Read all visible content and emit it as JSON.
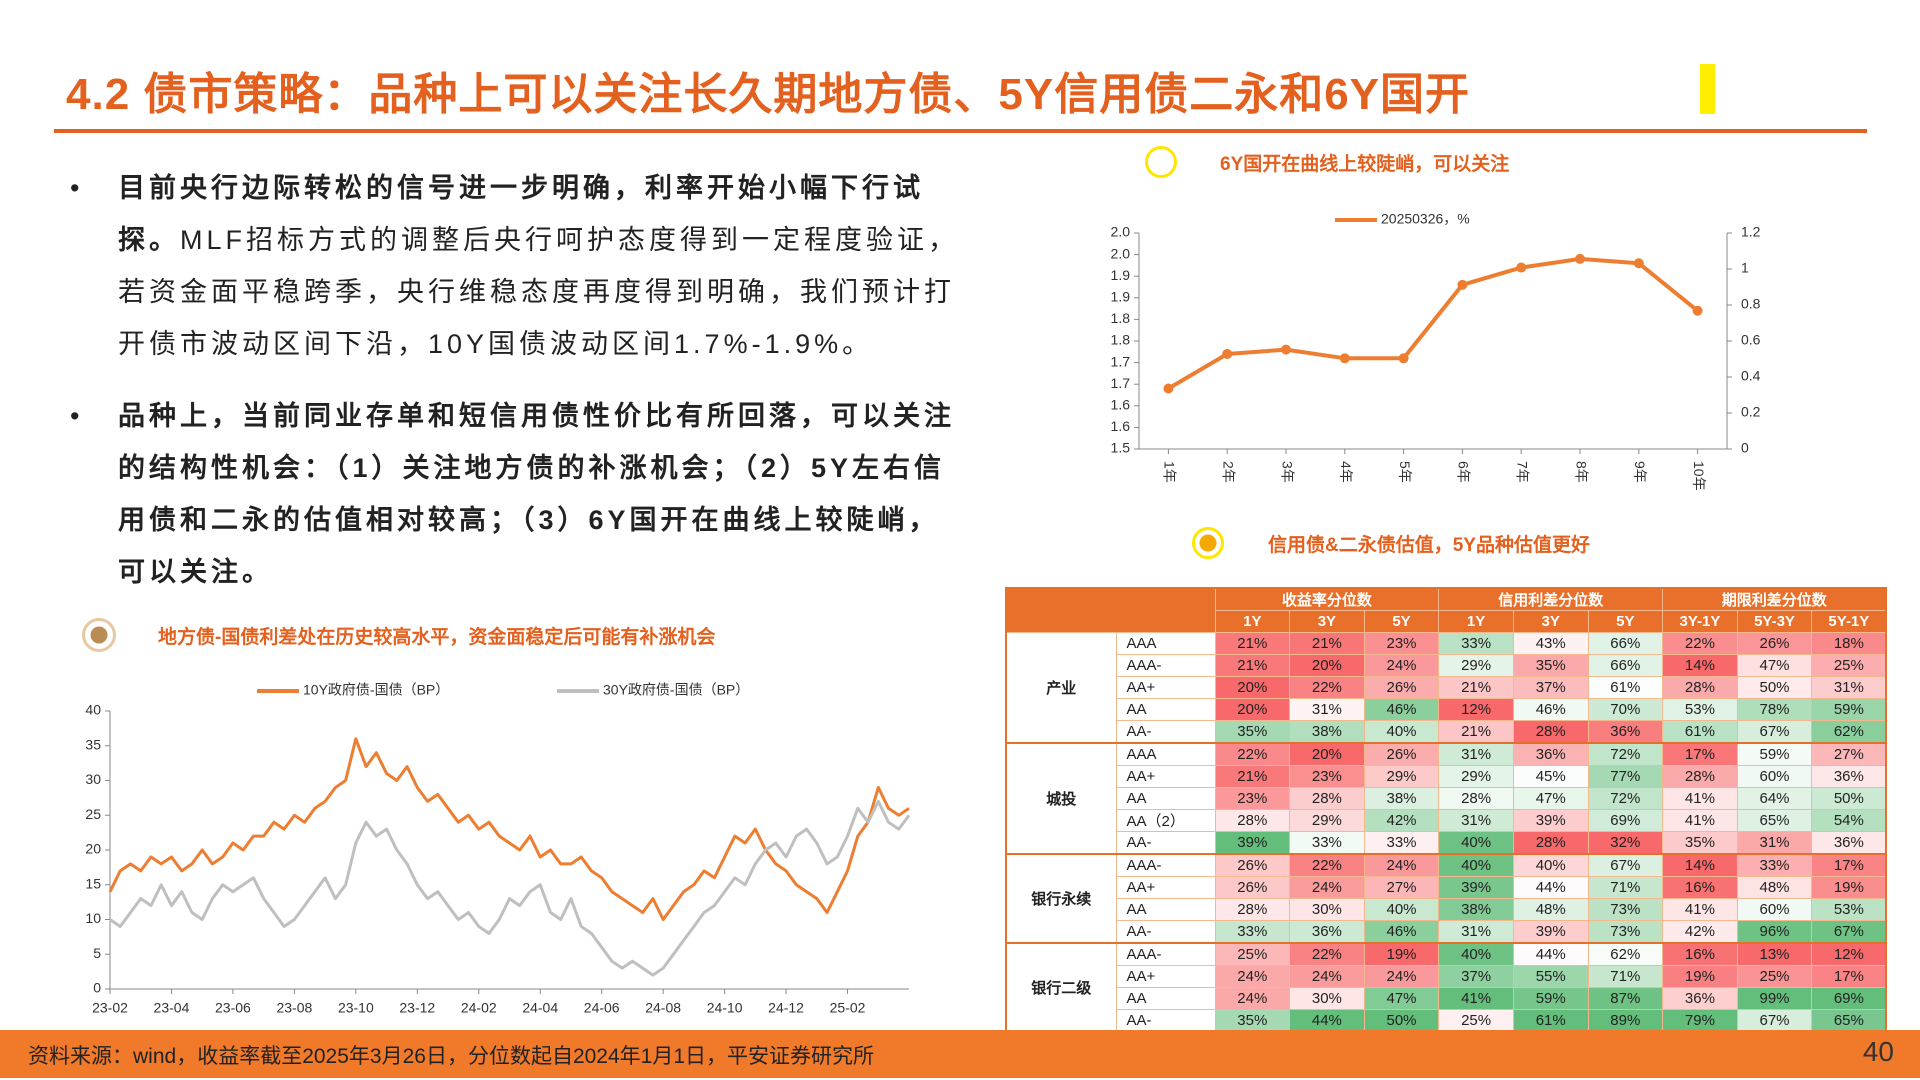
{
  "header": {
    "title": "4.2 债市策略：品种上可以关注长久期地方债、5Y信用债二永和6Y国开"
  },
  "bullets": [
    {
      "bold": "目前央行边际转松的信号进一步明确，利率开始小幅下行试探。",
      "text": "MLF招标方式的调整后央行呵护态度得到一定程度验证，若资金面平稳跨季，央行维稳态度再度得到明确，我们预计打开债市波动区间下沿，10Y国债波动区间1.7%-1.9%。"
    },
    {
      "bold": "品种上，当前同业存单和短信用债性价比有所回落，可以关注的结构性机会：（1）关注地方债的补涨机会；（2）5Y左右信用债和二永的估值相对较高；（3）6Y国开在曲线上较陡峭，可以关注。"
    }
  ],
  "chart_data": [
    {
      "type": "line",
      "title": "6Y国开在曲线上较陡峭，可以关注",
      "categories": [
        "1年",
        "2年",
        "3年",
        "4年",
        "5年",
        "6年",
        "7年",
        "8年",
        "9年",
        "10年"
      ],
      "series": [
        {
          "name": "20250326，%",
          "color": "#ed7d31",
          "values": [
            1.64,
            1.72,
            1.73,
            1.71,
            1.71,
            1.88,
            1.92,
            1.94,
            1.93,
            1.82
          ]
        }
      ],
      "ylim": [
        1.5,
        2.0
      ],
      "yticks": [
        1.5,
        {
          "value": 1.55,
          "label": "1.6"
        },
        1.6,
        {
          "value": 1.65,
          "label": "1.7"
        },
        1.7,
        {
          "value": 1.75,
          "label": "1.8"
        },
        1.8,
        {
          "value": 1.85,
          "label": "1.9"
        },
        1.9,
        {
          "value": 1.95,
          "label": "2.0"
        },
        {
          "value": 2.0,
          "label": "2.0"
        }
      ],
      "y2lim": [
        0,
        1.2
      ],
      "y2ticks": [
        0,
        0.2,
        0.4,
        0.6,
        0.8,
        1,
        1.2
      ],
      "grid": false,
      "markers": true
    },
    {
      "type": "line",
      "title": "地方债-国债利差处在历史较高水平，资金面稳定后可能有补涨机会",
      "categories": [
        "23-02",
        null,
        null,
        null,
        null,
        null,
        "23-04",
        null,
        null,
        null,
        null,
        null,
        "23-06",
        null,
        null,
        null,
        null,
        null,
        "23-08",
        null,
        null,
        null,
        null,
        null,
        "23-10",
        null,
        null,
        null,
        null,
        null,
        "23-12",
        null,
        null,
        null,
        null,
        null,
        "24-02",
        null,
        null,
        null,
        null,
        null,
        "24-04",
        null,
        null,
        null,
        null,
        null,
        "24-06",
        null,
        null,
        null,
        null,
        null,
        "24-08",
        null,
        null,
        null,
        null,
        null,
        "24-10",
        null,
        null,
        null,
        null,
        null,
        "24-12",
        null,
        null,
        null,
        null,
        null,
        "25-02",
        null,
        null,
        null,
        null,
        null,
        null
      ],
      "series": [
        {
          "name": "10Y政府债-国债（BP）",
          "color": "#ed7d31",
          "values": [
            14,
            17,
            18,
            17,
            19,
            18,
            19,
            17,
            18,
            20,
            18,
            19,
            21,
            20,
            22,
            22,
            24,
            23,
            25,
            24,
            26,
            27,
            29,
            30,
            36,
            32,
            34,
            31,
            30,
            32,
            29,
            27,
            28,
            26,
            24,
            25,
            23,
            24,
            22,
            21,
            20,
            22,
            19,
            20,
            18,
            18,
            19,
            17,
            16,
            14,
            13,
            12,
            11,
            13,
            10,
            12,
            14,
            15,
            17,
            16,
            19,
            22,
            21,
            23,
            20,
            18,
            17,
            15,
            14,
            13,
            11,
            14,
            17,
            22,
            24,
            29,
            26,
            25,
            26
          ]
        },
        {
          "name": "30Y政府债-国债（BP）",
          "color": "#bfbfbf",
          "values": [
            10,
            9,
            11,
            13,
            12,
            15,
            12,
            14,
            11,
            10,
            13,
            15,
            14,
            15,
            16,
            13,
            11,
            9,
            10,
            12,
            14,
            16,
            13,
            15,
            21,
            24,
            22,
            23,
            20,
            18,
            15,
            13,
            14,
            12,
            10,
            11,
            9,
            8,
            10,
            13,
            12,
            14,
            15,
            11,
            10,
            13,
            9,
            8,
            6,
            4,
            3,
            4,
            3,
            2,
            3,
            5,
            7,
            9,
            11,
            12,
            14,
            16,
            15,
            18,
            20,
            21,
            19,
            22,
            23,
            21,
            18,
            19,
            22,
            26,
            24,
            27,
            24,
            23,
            25
          ]
        }
      ],
      "ylim": [
        0,
        40
      ],
      "yticks": [
        0,
        5,
        10,
        15,
        20,
        25,
        30,
        35,
        40
      ],
      "grid": false,
      "markers": false
    }
  ],
  "table": {
    "title": "信用债&二永债估值，5Y品种估值更好",
    "colors": {
      "low": "#f8696b",
      "mid": "#ffffff",
      "high": "#63be7b"
    },
    "groups": [
      {
        "name": "收益率分位数",
        "columns": [
          "1Y",
          "3Y",
          "5Y"
        ]
      },
      {
        "name": "信用利差分位数",
        "columns": [
          "1Y",
          "3Y",
          "5Y"
        ]
      },
      {
        "name": "期限利差分位数",
        "columns": [
          "3Y-1Y",
          "5Y-3Y",
          "5Y-1Y"
        ]
      }
    ],
    "row_groups": [
      {
        "name": "产业",
        "rows": [
          {
            "label": "AAA",
            "cells": [
              "21%",
              "21%",
              "23%",
              "33%",
              "43%",
              "66%",
              "22%",
              "26%",
              "18%"
            ]
          },
          {
            "label": "AAA-",
            "cells": [
              "21%",
              "20%",
              "24%",
              "29%",
              "35%",
              "66%",
              "14%",
              "47%",
              "25%"
            ]
          },
          {
            "label": "AA+",
            "cells": [
              "20%",
              "22%",
              "26%",
              "21%",
              "37%",
              "61%",
              "28%",
              "50%",
              "31%"
            ]
          },
          {
            "label": "AA",
            "cells": [
              "20%",
              "31%",
              "46%",
              "12%",
              "46%",
              "70%",
              "53%",
              "78%",
              "59%"
            ]
          },
          {
            "label": "AA-",
            "cells": [
              "35%",
              "38%",
              "40%",
              "21%",
              "28%",
              "36%",
              "61%",
              "67%",
              "62%"
            ]
          }
        ]
      },
      {
        "name": "城投",
        "rows": [
          {
            "label": "AAA",
            "cells": [
              "22%",
              "20%",
              "26%",
              "31%",
              "36%",
              "72%",
              "17%",
              "59%",
              "27%"
            ]
          },
          {
            "label": "AA+",
            "cells": [
              "21%",
              "23%",
              "29%",
              "29%",
              "45%",
              "77%",
              "28%",
              "60%",
              "36%"
            ]
          },
          {
            "label": "AA",
            "cells": [
              "23%",
              "28%",
              "38%",
              "28%",
              "47%",
              "72%",
              "41%",
              "64%",
              "50%"
            ]
          },
          {
            "label": "AA（2）",
            "cells": [
              "28%",
              "29%",
              "42%",
              "31%",
              "39%",
              "69%",
              "41%",
              "65%",
              "54%"
            ]
          },
          {
            "label": "AA-",
            "cells": [
              "39%",
              "33%",
              "33%",
              "40%",
              "28%",
              "32%",
              "35%",
              "31%",
              "36%"
            ]
          }
        ]
      },
      {
        "name": "银行永续",
        "rows": [
          {
            "label": "AAA-",
            "cells": [
              "26%",
              "22%",
              "24%",
              "40%",
              "40%",
              "67%",
              "14%",
              "33%",
              "17%"
            ]
          },
          {
            "label": "AA+",
            "cells": [
              "26%",
              "24%",
              "27%",
              "39%",
              "44%",
              "71%",
              "16%",
              "48%",
              "19%"
            ]
          },
          {
            "label": "AA",
            "cells": [
              "28%",
              "30%",
              "40%",
              "38%",
              "48%",
              "73%",
              "41%",
              "60%",
              "53%"
            ]
          },
          {
            "label": "AA-",
            "cells": [
              "33%",
              "36%",
              "46%",
              "31%",
              "39%",
              "73%",
              "42%",
              "96%",
              "67%"
            ]
          }
        ]
      },
      {
        "name": "银行二级",
        "rows": [
          {
            "label": "AAA-",
            "cells": [
              "25%",
              "22%",
              "19%",
              "40%",
              "44%",
              "62%",
              "16%",
              "13%",
              "12%"
            ]
          },
          {
            "label": "AA+",
            "cells": [
              "24%",
              "24%",
              "24%",
              "37%",
              "55%",
              "71%",
              "19%",
              "25%",
              "17%"
            ]
          },
          {
            "label": "AA",
            "cells": [
              "24%",
              "30%",
              "47%",
              "41%",
              "59%",
              "87%",
              "36%",
              "99%",
              "69%"
            ]
          },
          {
            "label": "AA-",
            "cells": [
              "35%",
              "44%",
              "50%",
              "25%",
              "61%",
              "89%",
              "79%",
              "67%",
              "65%"
            ]
          }
        ]
      }
    ]
  },
  "footer": {
    "source": "资料来源：wind，收益率截至2025年3月26日，分位数起自2024年1月1日，平安证券研究所",
    "page": "40"
  }
}
